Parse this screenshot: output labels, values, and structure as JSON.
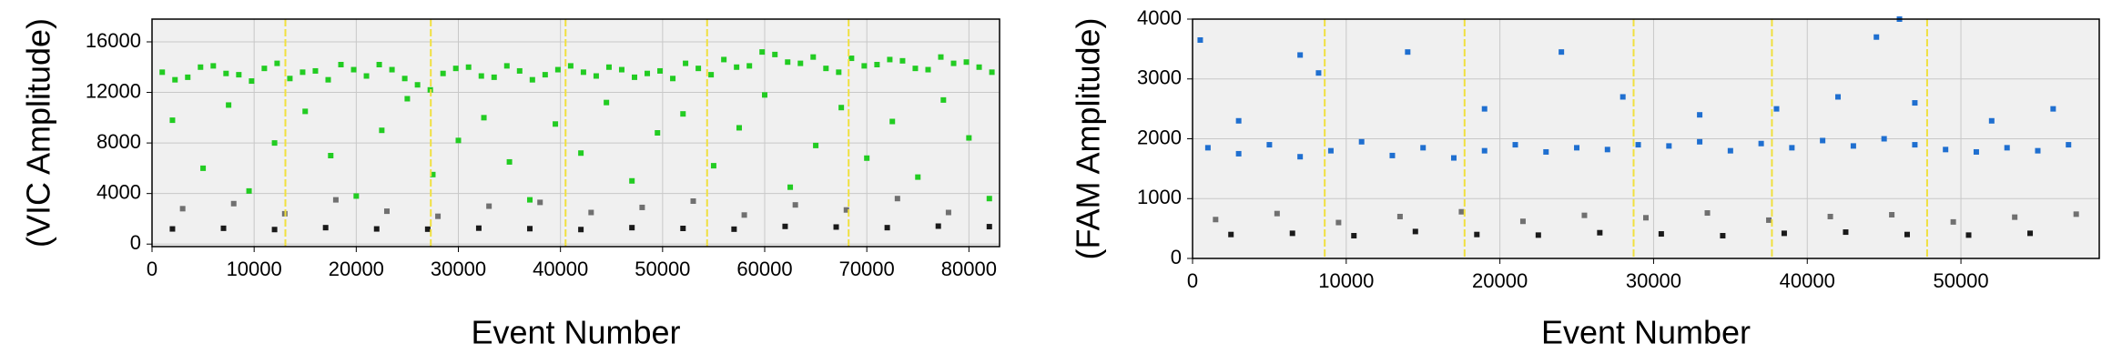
{
  "chart_data": [
    {
      "type": "scatter",
      "ylabel": "(VIC Amplitude)",
      "xlabel": "Event Number",
      "xlim": [
        0,
        83000
      ],
      "ylim": [
        -200,
        17800
      ],
      "xticks": [
        0,
        10000,
        20000,
        30000,
        40000,
        50000,
        60000,
        70000,
        80000
      ],
      "yticks": [
        0,
        4000,
        8000,
        12000,
        16000
      ],
      "grid": true,
      "vlines": {
        "color": "#f0e040",
        "x": [
          13060,
          27300,
          40500,
          54360,
          68220
        ]
      },
      "series": [
        {
          "color": "#22cc22",
          "x": [
            1000,
            3500,
            6000,
            8500,
            11000,
            13500,
            16000,
            18500,
            21000,
            23500,
            26000,
            28500,
            31000,
            33500,
            36000,
            38500,
            41000,
            43500,
            46000,
            48500,
            51000,
            53500,
            56000,
            58500,
            61000,
            63500,
            66000,
            68500,
            71000,
            73500,
            76000,
            78500,
            81000,
            2250,
            4750,
            7250,
            9750,
            12250,
            14750,
            17250,
            19750,
            22250,
            24750,
            27250,
            29750,
            32250,
            34750,
            37250,
            39750,
            42250,
            44750,
            47250,
            49750,
            52250,
            54750,
            57250,
            59750,
            62250,
            64750,
            67250,
            69750,
            72250,
            74750,
            77250,
            79750,
            82250,
            2000,
            5000,
            7500,
            9500,
            12000,
            15000,
            17500,
            20000,
            22500,
            25000,
            27500,
            30000,
            32500,
            35000,
            37000,
            39500,
            42000,
            44500,
            47000,
            49500,
            52000,
            55000,
            57500,
            60000,
            62500,
            65000,
            67500,
            70000,
            72500,
            75000,
            77500,
            80000,
            82000
          ],
          "values": [
            13600,
            13200,
            14100,
            13400,
            13900,
            13100,
            13700,
            14200,
            13300,
            13800,
            12600,
            13500,
            14000,
            13200,
            13700,
            13400,
            14100,
            13300,
            13800,
            13500,
            13100,
            13900,
            14600,
            14100,
            15000,
            14300,
            13900,
            14700,
            14200,
            14500,
            13800,
            14300,
            14000,
            13000,
            14000,
            13500,
            12900,
            14300,
            13600,
            13000,
            13800,
            14200,
            13100,
            12200,
            13900,
            13300,
            14100,
            13000,
            13800,
            13600,
            14000,
            13200,
            13700,
            14300,
            13400,
            14000,
            15200,
            14400,
            14800,
            13600,
            14100,
            14600,
            13900,
            14800,
            14400,
            13600,
            9800,
            6000,
            11000,
            4200,
            8000,
            10500,
            7000,
            3800,
            9000,
            11500,
            5500,
            8200,
            10000,
            6500,
            3500,
            9500,
            7200,
            11200,
            5000,
            8800,
            10300,
            6200,
            9200,
            11800,
            4500,
            7800,
            10800,
            6800,
            9700,
            5300,
            11400,
            8400,
            3600
          ]
        },
        {
          "color": "#707070",
          "x": [
            3000,
            8000,
            13000,
            18000,
            23000,
            28000,
            33000,
            38000,
            43000,
            48000,
            53000,
            58000,
            63000,
            68000,
            73000,
            78000
          ],
          "values": [
            2800,
            3200,
            2400,
            3500,
            2600,
            2200,
            3000,
            3300,
            2500,
            2900,
            3400,
            2300,
            3100,
            2700,
            3600,
            2500
          ]
        },
        {
          "color": "#1a1a1a",
          "x": [
            2000,
            7000,
            12000,
            17000,
            22000,
            27000,
            32000,
            37000,
            42000,
            47000,
            52000,
            57000,
            62000,
            67000,
            72000,
            77000,
            82000
          ],
          "values": [
            1200,
            1250,
            1150,
            1300,
            1200,
            1180,
            1260,
            1220,
            1150,
            1300,
            1240,
            1180,
            1400,
            1350,
            1300,
            1420,
            1380
          ]
        }
      ]
    },
    {
      "type": "scatter",
      "ylabel": "(FAM Amplitude)",
      "xlabel": "Event Number",
      "xlim": [
        0,
        59000
      ],
      "ylim": [
        0,
        4000
      ],
      "xticks": [
        0,
        10000,
        20000,
        30000,
        40000,
        50000
      ],
      "yticks": [
        0,
        1000,
        2000,
        3000,
        4000
      ],
      "grid": true,
      "vlines": {
        "color": "#f0e040",
        "x": [
          8600,
          17700,
          28700,
          37700,
          47800
        ]
      },
      "series": [
        {
          "color": "#1f6fd0",
          "x": [
            1000,
            3000,
            5000,
            7000,
            9000,
            11000,
            13000,
            15000,
            17000,
            19000,
            21000,
            23000,
            25000,
            27000,
            29000,
            31000,
            33000,
            35000,
            37000,
            39000,
            41000,
            43000,
            45000,
            47000,
            49000,
            51000,
            53000,
            55000,
            57000,
            500,
            3000,
            7000,
            8200,
            14000,
            19000,
            24000,
            28000,
            33000,
            38000,
            42000,
            44500,
            46000,
            47000,
            52000,
            56000
          ],
          "values": [
            1850,
            1750,
            1900,
            1700,
            1800,
            1950,
            1720,
            1850,
            1680,
            1800,
            1900,
            1780,
            1850,
            1820,
            1900,
            1880,
            1950,
            1800,
            1920,
            1850,
            1970,
            1880,
            2000,
            1900,
            1820,
            1780,
            1850,
            1800,
            1900,
            3650,
            2300,
            3400,
            3100,
            3450,
            2500,
            3450,
            2700,
            2400,
            2500,
            2700,
            3700,
            4000,
            2600,
            2300,
            2500
          ]
        },
        {
          "color": "#707070",
          "x": [
            1500,
            5500,
            9500,
            13500,
            17500,
            21500,
            25500,
            29500,
            33500,
            37500,
            41500,
            45500,
            49500,
            53500,
            57500
          ],
          "values": [
            650,
            750,
            600,
            700,
            780,
            620,
            720,
            680,
            760,
            640,
            700,
            730,
            610,
            690,
            740
          ]
        },
        {
          "color": "#1a1a1a",
          "x": [
            2500,
            6500,
            10500,
            14500,
            18500,
            22500,
            26500,
            30500,
            34500,
            38500,
            42500,
            46500,
            50500,
            54500
          ],
          "values": [
            400,
            420,
            380,
            450,
            400,
            390,
            430,
            410,
            380,
            420,
            440,
            400,
            390,
            420
          ]
        }
      ]
    }
  ]
}
